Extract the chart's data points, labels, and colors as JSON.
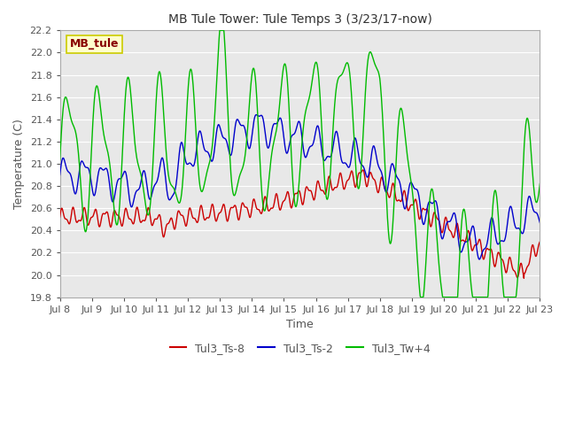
{
  "title": "MB Tule Tower: Tule Temps 3 (3/23/17-now)",
  "xlabel": "Time",
  "ylabel": "Temperature (C)",
  "ylim": [
    19.8,
    22.2
  ],
  "xlim": [
    0,
    15
  ],
  "xtick_labels": [
    "Jul 8",
    "Jul 9",
    "Jul 10",
    "Jul 11",
    "Jul 12",
    "Jul 13",
    "Jul 14",
    "Jul 15",
    "Jul 16",
    "Jul 17",
    "Jul 18",
    "Jul 19",
    "Jul 20",
    "Jul 21",
    "Jul 22",
    "Jul 23"
  ],
  "xtick_positions": [
    0,
    1,
    2,
    3,
    4,
    5,
    6,
    7,
    8,
    9,
    10,
    11,
    12,
    13,
    14,
    15
  ],
  "ytick_labels": [
    "19.8",
    "20.0",
    "20.2",
    "20.4",
    "20.6",
    "20.8",
    "21.0",
    "21.2",
    "21.4",
    "21.6",
    "21.8",
    "22.0",
    "22.2"
  ],
  "ytick_positions": [
    19.8,
    20.0,
    20.2,
    20.4,
    20.6,
    20.8,
    21.0,
    21.2,
    21.4,
    21.6,
    21.8,
    22.0,
    22.2
  ],
  "colors": {
    "red": "#cc0000",
    "blue": "#0000cc",
    "green": "#00bb00",
    "bg_outer": "#ffffff",
    "bg_inner": "#e8e8e8",
    "grid": "#ffffff",
    "legend_box_bg": "#ffffcc",
    "legend_box_edge": "#cccc00",
    "legend_text": "#880000"
  },
  "legend_entries": [
    "Tul3_Ts-8",
    "Tul3_Ts-2",
    "Tul3_Tw+4"
  ],
  "watermark_text": "MB_tule",
  "line_width": 1.0,
  "figsize": [
    6.4,
    4.8
  ],
  "dpi": 100
}
